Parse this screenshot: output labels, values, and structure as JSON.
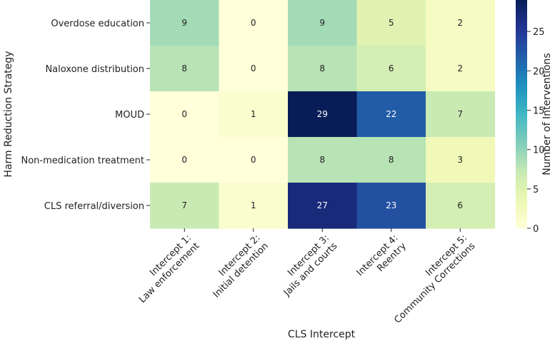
{
  "chart_data": {
    "type": "heatmap",
    "title": "",
    "xlabel": "CLS Intercept",
    "ylabel": "Harm Reduction Strategy",
    "colorbar_label": "Number of Interventions",
    "colorbar_range": [
      0,
      29
    ],
    "colorbar_ticks": [
      "0",
      "5",
      "10",
      "15",
      "20",
      "25"
    ],
    "colormap": "YlGnBu",
    "x_categories": [
      [
        "Intercept 1:",
        "Law enforcement"
      ],
      [
        "Intercept 2:",
        "Initial detention"
      ],
      [
        "Intercept 3:",
        "Jails and courts"
      ],
      [
        "Intercept 4:",
        "Reentry"
      ],
      [
        "Intercept 5:",
        "Community Corrections"
      ]
    ],
    "y_categories": [
      "Overdose education",
      "Naloxone distribution",
      "MOUD",
      "Non-medication treatment",
      "CLS referral/diversion"
    ],
    "values": [
      [
        9,
        0,
        9,
        5,
        2
      ],
      [
        8,
        0,
        8,
        6,
        2
      ],
      [
        0,
        1,
        29,
        22,
        7
      ],
      [
        0,
        0,
        8,
        8,
        3
      ],
      [
        7,
        1,
        27,
        23,
        6
      ]
    ]
  }
}
